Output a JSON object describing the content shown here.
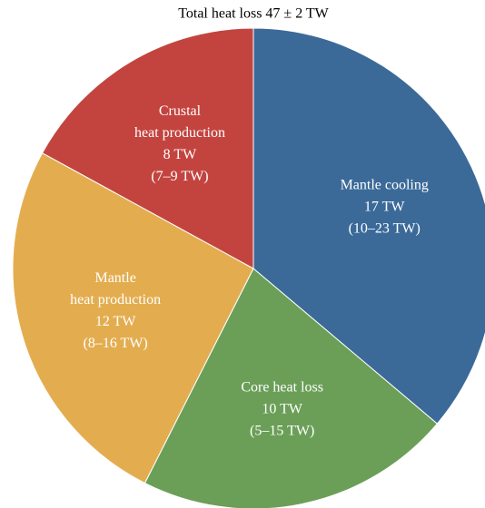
{
  "chart_data": {
    "type": "pie",
    "title": "Total heat loss 47 ± 2 TW",
    "categories": [
      [
        "Mantle cooling"
      ],
      [
        "Core heat loss"
      ],
      [
        "Mantle",
        "heat production"
      ],
      [
        "Crustal",
        "heat production"
      ]
    ],
    "values": [
      17,
      10,
      12,
      8
    ],
    "value_labels": [
      "17 TW",
      "10 TW",
      "12 TW",
      "8 TW"
    ],
    "ranges": [
      "(10–23 TW)",
      "(5–15 TW)",
      "(8–16 TW)",
      "(7–9 TW)"
    ],
    "colors": [
      "#3b6a99",
      "#6b9f58",
      "#e3ad4f",
      "#c3443f"
    ]
  }
}
